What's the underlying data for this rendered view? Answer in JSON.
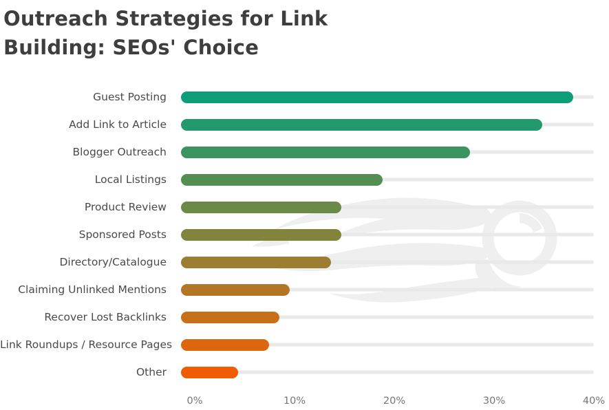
{
  "page": {
    "title": "Outreach Strategies for Link Building: SEOs' Choice",
    "background_color": "#ffffff",
    "title_color": "#3e3e3e",
    "label_color": "#4a4a4a",
    "tick_color": "#757575",
    "track_color": "#e9e9e9",
    "watermark": {
      "name": "semrush-logo-ghost",
      "color": "#efefef"
    }
  },
  "chart_data": {
    "type": "bar",
    "orientation": "horizontal",
    "title": "Outreach Strategies for Link Building: SEOs' Choice",
    "xlabel": "",
    "ylabel": "",
    "xlim": [
      0,
      40
    ],
    "x_tick_labels": [
      "0%",
      "10%",
      "20%",
      "30%",
      "40%"
    ],
    "x_tick_values": [
      0,
      10,
      20,
      30,
      40
    ],
    "grid": false,
    "legend": "none",
    "categories": [
      "Guest Posting",
      "Add Link to Article",
      "Blogger Outreach",
      "Local Listings",
      "Product Review",
      "Sponsored Posts",
      "Directory/Catalogue",
      "Claiming Unlinked Mentions",
      "Recover Lost Backlinks",
      "Link Roundups / Resource Pages",
      "Other"
    ],
    "values": [
      38,
      35,
      28,
      19.5,
      15.5,
      15.5,
      14.5,
      10.5,
      9.5,
      8.5,
      5.5
    ],
    "bar_colors": [
      "#0d9e78",
      "#23996c",
      "#3a945f",
      "#538f53",
      "#6c8a47",
      "#82843c",
      "#9c7d32",
      "#b37627",
      "#c86f1b",
      "#dd670f",
      "#f05c04"
    ]
  }
}
